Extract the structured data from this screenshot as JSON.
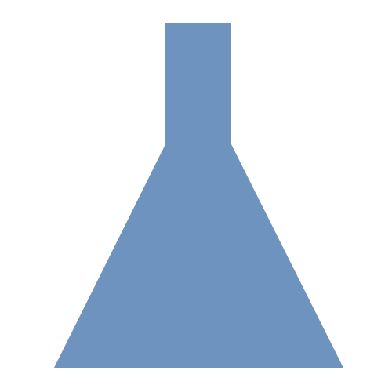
{
  "icon": {
    "name": "erlenmeyer-flask-icon",
    "fill_color": "#6E93BF"
  },
  "background_color": "#FFFFFF"
}
